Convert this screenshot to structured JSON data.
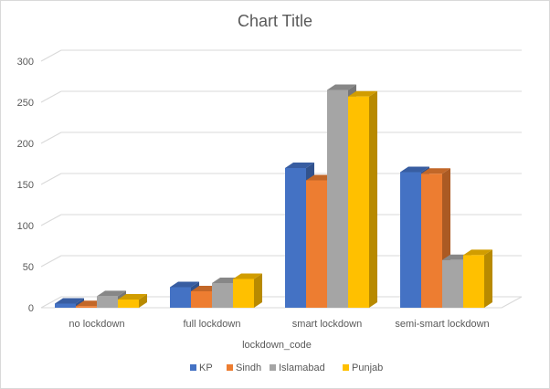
{
  "chart_data": {
    "type": "bar",
    "title": "Chart Title",
    "xlabel": "lockdown_code",
    "ylabel": "",
    "categories": [
      "no lockdown",
      "full lockdown",
      "smart lockdown",
      "semi-smart lockdown"
    ],
    "ylim": [
      0,
      300
    ],
    "yticks": [
      0,
      50,
      100,
      150,
      200,
      250,
      300
    ],
    "grid": true,
    "legend_position": "bottom",
    "style": "3d-clustered-column",
    "series": [
      {
        "name": "KP",
        "color": "#4472c4",
        "values": [
          5,
          25,
          170,
          165
        ]
      },
      {
        "name": "Sindh",
        "color": "#ed7d31",
        "values": [
          2,
          20,
          155,
          163
        ]
      },
      {
        "name": "Islamabad",
        "color": "#a5a5a5",
        "values": [
          14,
          30,
          265,
          58
        ]
      },
      {
        "name": "Punjab",
        "color": "#ffc000",
        "values": [
          10,
          35,
          257,
          64
        ]
      }
    ]
  }
}
